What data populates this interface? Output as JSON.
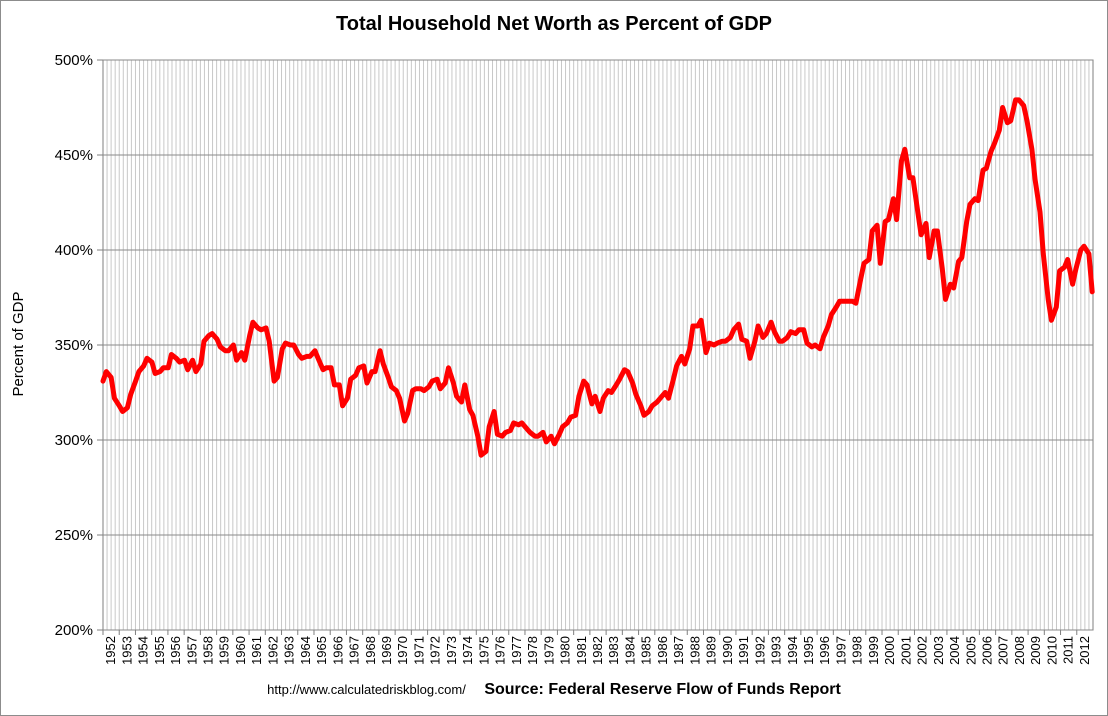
{
  "chart_data": {
    "type": "line",
    "title": "Total Household Net Worth as Percent of GDP",
    "xlabel": "",
    "ylabel": "Percent of GDP",
    "ylim": [
      200,
      500
    ],
    "y_ticks": [
      500,
      450,
      400,
      350,
      300,
      250,
      200
    ],
    "y_tick_labels": [
      "500%",
      "450%",
      "400%",
      "350%",
      "300%",
      "250%",
      "200%"
    ],
    "x_range": [
      1952,
      2012
    ],
    "x_tick_labels": [
      "1952",
      "1953",
      "1954",
      "1955",
      "1956",
      "1957",
      "1958",
      "1959",
      "1960",
      "1961",
      "1962",
      "1963",
      "1964",
      "1965",
      "1966",
      "1967",
      "1968",
      "1969",
      "1970",
      "1971",
      "1972",
      "1973",
      "1974",
      "1975",
      "1976",
      "1977",
      "1978",
      "1979",
      "1980",
      "1981",
      "1982",
      "1983",
      "1984",
      "1985",
      "1986",
      "1987",
      "1988",
      "1989",
      "1990",
      "1991",
      "1992",
      "1993",
      "1994",
      "1995",
      "1996",
      "1997",
      "1998",
      "1999",
      "2000",
      "2001",
      "2002",
      "2003",
      "2004",
      "2005",
      "2006",
      "2007",
      "2008",
      "2009",
      "2010",
      "2011",
      "2012"
    ],
    "grid": true,
    "legend": "none",
    "series": [
      {
        "name": "Household Net Worth as Percent of GDP",
        "color": "#ff0000",
        "points": [
          [
            1952.0,
            331
          ],
          [
            1952.2,
            336
          ],
          [
            1952.5,
            333
          ],
          [
            1952.7,
            322
          ],
          [
            1953.0,
            318
          ],
          [
            1953.2,
            315
          ],
          [
            1953.5,
            317
          ],
          [
            1953.7,
            324
          ],
          [
            1954.0,
            331
          ],
          [
            1954.2,
            336
          ],
          [
            1954.5,
            339
          ],
          [
            1954.7,
            343
          ],
          [
            1955.0,
            341
          ],
          [
            1955.2,
            335
          ],
          [
            1955.5,
            336
          ],
          [
            1955.7,
            338
          ],
          [
            1956.0,
            338
          ],
          [
            1956.2,
            345
          ],
          [
            1956.5,
            343
          ],
          [
            1956.7,
            341
          ],
          [
            1957.0,
            342
          ],
          [
            1957.2,
            337
          ],
          [
            1957.5,
            342
          ],
          [
            1957.7,
            336
          ],
          [
            1958.0,
            340
          ],
          [
            1958.2,
            352
          ],
          [
            1958.5,
            355
          ],
          [
            1958.7,
            356
          ],
          [
            1959.0,
            353
          ],
          [
            1959.2,
            349
          ],
          [
            1959.5,
            347
          ],
          [
            1959.7,
            347
          ],
          [
            1960.0,
            350
          ],
          [
            1960.2,
            342
          ],
          [
            1960.5,
            346
          ],
          [
            1960.7,
            342
          ],
          [
            1961.0,
            355
          ],
          [
            1961.2,
            362
          ],
          [
            1961.5,
            359
          ],
          [
            1961.7,
            358
          ],
          [
            1962.0,
            359
          ],
          [
            1962.2,
            352
          ],
          [
            1962.5,
            331
          ],
          [
            1962.7,
            333
          ],
          [
            1963.0,
            348
          ],
          [
            1963.2,
            351
          ],
          [
            1963.5,
            350
          ],
          [
            1963.7,
            350
          ],
          [
            1964.0,
            345
          ],
          [
            1964.2,
            343
          ],
          [
            1964.5,
            344
          ],
          [
            1964.7,
            344
          ],
          [
            1965.0,
            347
          ],
          [
            1965.2,
            343
          ],
          [
            1965.5,
            337
          ],
          [
            1965.7,
            338
          ],
          [
            1966.0,
            338
          ],
          [
            1966.2,
            329
          ],
          [
            1966.5,
            329
          ],
          [
            1966.7,
            318
          ],
          [
            1967.0,
            322
          ],
          [
            1967.2,
            332
          ],
          [
            1967.5,
            334
          ],
          [
            1967.7,
            338
          ],
          [
            1968.0,
            339
          ],
          [
            1968.2,
            330
          ],
          [
            1968.5,
            336
          ],
          [
            1968.7,
            336
          ],
          [
            1969.0,
            347
          ],
          [
            1969.2,
            340
          ],
          [
            1969.5,
            333
          ],
          [
            1969.7,
            328
          ],
          [
            1970.0,
            326
          ],
          [
            1970.2,
            322
          ],
          [
            1970.5,
            310
          ],
          [
            1970.7,
            314
          ],
          [
            1971.0,
            326
          ],
          [
            1971.2,
            327
          ],
          [
            1971.5,
            327
          ],
          [
            1971.7,
            326
          ],
          [
            1972.0,
            328
          ],
          [
            1972.2,
            331
          ],
          [
            1972.5,
            332
          ],
          [
            1972.7,
            327
          ],
          [
            1973.0,
            330
          ],
          [
            1973.2,
            338
          ],
          [
            1973.5,
            330
          ],
          [
            1973.7,
            323
          ],
          [
            1974.0,
            320
          ],
          [
            1974.2,
            329
          ],
          [
            1974.5,
            316
          ],
          [
            1974.7,
            313
          ],
          [
            1975.0,
            302
          ],
          [
            1975.2,
            292
          ],
          [
            1975.5,
            294
          ],
          [
            1975.7,
            307
          ],
          [
            1976.0,
            315
          ],
          [
            1976.2,
            303
          ],
          [
            1976.5,
            302
          ],
          [
            1976.7,
            304
          ],
          [
            1977.0,
            305
          ],
          [
            1977.2,
            309
          ],
          [
            1977.5,
            308
          ],
          [
            1977.7,
            309
          ],
          [
            1978.0,
            306
          ],
          [
            1978.2,
            304
          ],
          [
            1978.5,
            302
          ],
          [
            1978.7,
            302
          ],
          [
            1979.0,
            304
          ],
          [
            1979.2,
            299
          ],
          [
            1979.5,
            302
          ],
          [
            1979.7,
            298
          ],
          [
            1980.0,
            303
          ],
          [
            1980.2,
            307
          ],
          [
            1980.5,
            309
          ],
          [
            1980.7,
            312
          ],
          [
            1981.0,
            313
          ],
          [
            1981.2,
            323
          ],
          [
            1981.5,
            331
          ],
          [
            1981.7,
            329
          ],
          [
            1982.0,
            319
          ],
          [
            1982.2,
            323
          ],
          [
            1982.5,
            315
          ],
          [
            1982.7,
            322
          ],
          [
            1983.0,
            326
          ],
          [
            1983.2,
            325
          ],
          [
            1983.5,
            329
          ],
          [
            1983.7,
            332
          ],
          [
            1984.0,
            337
          ],
          [
            1984.2,
            336
          ],
          [
            1984.5,
            330
          ],
          [
            1984.7,
            324
          ],
          [
            1985.0,
            318
          ],
          [
            1985.2,
            313
          ],
          [
            1985.5,
            315
          ],
          [
            1985.7,
            318
          ],
          [
            1986.0,
            320
          ],
          [
            1986.2,
            322
          ],
          [
            1986.5,
            325
          ],
          [
            1986.7,
            322
          ],
          [
            1987.0,
            332
          ],
          [
            1987.2,
            339
          ],
          [
            1987.5,
            344
          ],
          [
            1987.7,
            340
          ],
          [
            1988.0,
            348
          ],
          [
            1988.2,
            360
          ],
          [
            1988.5,
            360
          ],
          [
            1988.7,
            363
          ],
          [
            1989.0,
            346
          ],
          [
            1989.2,
            351
          ],
          [
            1989.5,
            350
          ],
          [
            1989.7,
            351
          ],
          [
            1990.0,
            352
          ],
          [
            1990.2,
            352
          ],
          [
            1990.5,
            354
          ],
          [
            1990.7,
            358
          ],
          [
            1991.0,
            361
          ],
          [
            1991.2,
            353
          ],
          [
            1991.5,
            352
          ],
          [
            1991.7,
            343
          ],
          [
            1992.0,
            352
          ],
          [
            1992.2,
            360
          ],
          [
            1992.5,
            354
          ],
          [
            1992.7,
            356
          ],
          [
            1993.0,
            362
          ],
          [
            1993.2,
            357
          ],
          [
            1993.5,
            352
          ],
          [
            1993.7,
            352
          ],
          [
            1994.0,
            354
          ],
          [
            1994.2,
            357
          ],
          [
            1994.5,
            356
          ],
          [
            1994.7,
            358
          ],
          [
            1995.0,
            358
          ],
          [
            1995.2,
            351
          ],
          [
            1995.5,
            349
          ],
          [
            1995.7,
            350
          ],
          [
            1996.0,
            348
          ],
          [
            1996.2,
            354
          ],
          [
            1996.5,
            360
          ],
          [
            1996.7,
            366
          ],
          [
            1997.0,
            370
          ],
          [
            1997.2,
            373
          ],
          [
            1997.5,
            373
          ],
          [
            1997.7,
            373
          ],
          [
            1998.0,
            373
          ],
          [
            1998.2,
            372
          ],
          [
            1998.5,
            385
          ],
          [
            1998.7,
            393
          ],
          [
            1999.0,
            395
          ],
          [
            1999.2,
            410
          ],
          [
            1999.5,
            413
          ],
          [
            1999.7,
            393
          ],
          [
            2000.0,
            415
          ],
          [
            2000.2,
            416
          ],
          [
            2000.5,
            427
          ],
          [
            2000.7,
            416
          ],
          [
            2001.0,
            447
          ],
          [
            2001.2,
            453
          ],
          [
            2001.5,
            438
          ],
          [
            2001.7,
            438
          ],
          [
            2002.0,
            420
          ],
          [
            2002.2,
            408
          ],
          [
            2002.5,
            414
          ],
          [
            2002.7,
            396
          ],
          [
            2003.0,
            410
          ],
          [
            2003.2,
            410
          ],
          [
            2003.5,
            390
          ],
          [
            2003.7,
            374
          ],
          [
            2004.0,
            382
          ],
          [
            2004.2,
            380
          ],
          [
            2004.5,
            394
          ],
          [
            2004.7,
            396
          ],
          [
            2005.0,
            415
          ],
          [
            2005.2,
            424
          ],
          [
            2005.5,
            427
          ],
          [
            2005.7,
            426
          ],
          [
            2006.0,
            442
          ],
          [
            2006.2,
            443
          ],
          [
            2006.5,
            452
          ],
          [
            2006.7,
            456
          ],
          [
            2007.0,
            463
          ],
          [
            2007.2,
            475
          ],
          [
            2007.5,
            467
          ],
          [
            2007.7,
            468
          ],
          [
            2008.0,
            479
          ],
          [
            2008.2,
            479
          ],
          [
            2008.5,
            476
          ],
          [
            2008.7,
            468
          ],
          [
            2009.0,
            453
          ],
          [
            2009.2,
            437
          ],
          [
            2009.5,
            420
          ],
          [
            2009.7,
            398
          ],
          [
            2010.0,
            374
          ],
          [
            2010.2,
            363
          ],
          [
            2010.5,
            370
          ],
          [
            2010.7,
            389
          ],
          [
            2011.0,
            391
          ],
          [
            2011.2,
            395
          ],
          [
            2011.5,
            382
          ],
          [
            2011.7,
            390
          ],
          [
            2012.0,
            400
          ],
          [
            2012.2,
            402
          ],
          [
            2012.5,
            398
          ],
          [
            2012.7,
            378
          ]
        ]
      }
    ],
    "annotations": []
  },
  "footer": {
    "url": "http://www.calculatedriskblog.com/",
    "source": "Source: Federal Reserve Flow of Funds Report"
  }
}
